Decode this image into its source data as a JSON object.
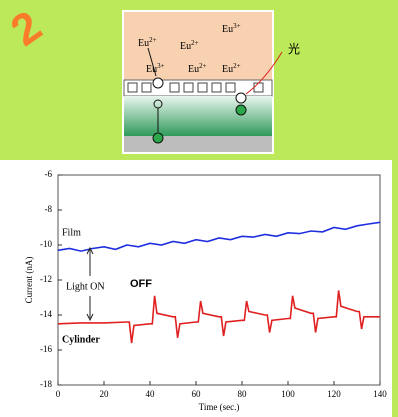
{
  "corner_label": "2",
  "diagram": {
    "labels": [
      {
        "base": "Eu",
        "sup": "2+"
      },
      {
        "base": "Eu",
        "sup": "2+"
      },
      {
        "base": "Eu",
        "sup": "3+"
      },
      {
        "base": "Eu",
        "sup": "3+"
      },
      {
        "base": "Eu",
        "sup": "2+"
      },
      {
        "base": "Eu",
        "sup": "2+"
      }
    ],
    "light": "光"
  },
  "chart_data": {
    "type": "line",
    "xlabel": "Time (sec.)",
    "ylabel": "Current (nA)",
    "xlim": [
      0,
      140
    ],
    "xticks": [
      0,
      20,
      40,
      60,
      80,
      100,
      120,
      140
    ],
    "ylim": [
      -18,
      -6
    ],
    "yticks": [
      -18,
      -16,
      -14,
      -12,
      -10,
      -8,
      -6
    ],
    "annotations": [
      "Film",
      "Light ON",
      "OFF",
      "Cylinder"
    ],
    "series": [
      {
        "name": "Film",
        "color": "#1f2fe0",
        "x": [
          0,
          5,
          10,
          15,
          20,
          25,
          30,
          35,
          40,
          45,
          50,
          55,
          60,
          65,
          70,
          75,
          80,
          85,
          90,
          95,
          100,
          105,
          110,
          115,
          120,
          125,
          130,
          135,
          140
        ],
        "values": [
          -10.3,
          -10.2,
          -10.35,
          -10.2,
          -10.1,
          -10.25,
          -10.0,
          -10.1,
          -9.9,
          -10.0,
          -9.8,
          -9.9,
          -9.7,
          -9.8,
          -9.6,
          -9.7,
          -9.5,
          -9.55,
          -9.4,
          -9.5,
          -9.3,
          -9.35,
          -9.2,
          -9.25,
          -9.0,
          -9.1,
          -8.9,
          -8.8,
          -8.7
        ]
      },
      {
        "name": "Cylinder",
        "color": "#e02020",
        "x": [
          0,
          10,
          20,
          30,
          31,
          32,
          33,
          40,
          41,
          42,
          43,
          50,
          51,
          52,
          53,
          60,
          61,
          62,
          63,
          70,
          71,
          72,
          73,
          80,
          81,
          82,
          83,
          90,
          91,
          92,
          93,
          100,
          101,
          102,
          103,
          110,
          111,
          112,
          113,
          120,
          121,
          122,
          123,
          130,
          131,
          132,
          133,
          140
        ],
        "values": [
          -14.5,
          -14.45,
          -14.45,
          -14.4,
          -14.4,
          -15.6,
          -14.6,
          -14.5,
          -14.5,
          -12.9,
          -13.9,
          -14.1,
          -14.1,
          -15.3,
          -14.5,
          -14.4,
          -14.4,
          -13.2,
          -13.9,
          -14.1,
          -14.1,
          -15.2,
          -14.4,
          -14.3,
          -14.3,
          -13.2,
          -13.8,
          -14.0,
          -14.0,
          -15.0,
          -14.3,
          -14.2,
          -14.2,
          -12.9,
          -13.6,
          -13.9,
          -13.9,
          -15.0,
          -14.2,
          -14.1,
          -14.1,
          -12.6,
          -13.5,
          -13.8,
          -13.8,
          -14.8,
          -14.1,
          -14.1
        ]
      }
    ]
  }
}
